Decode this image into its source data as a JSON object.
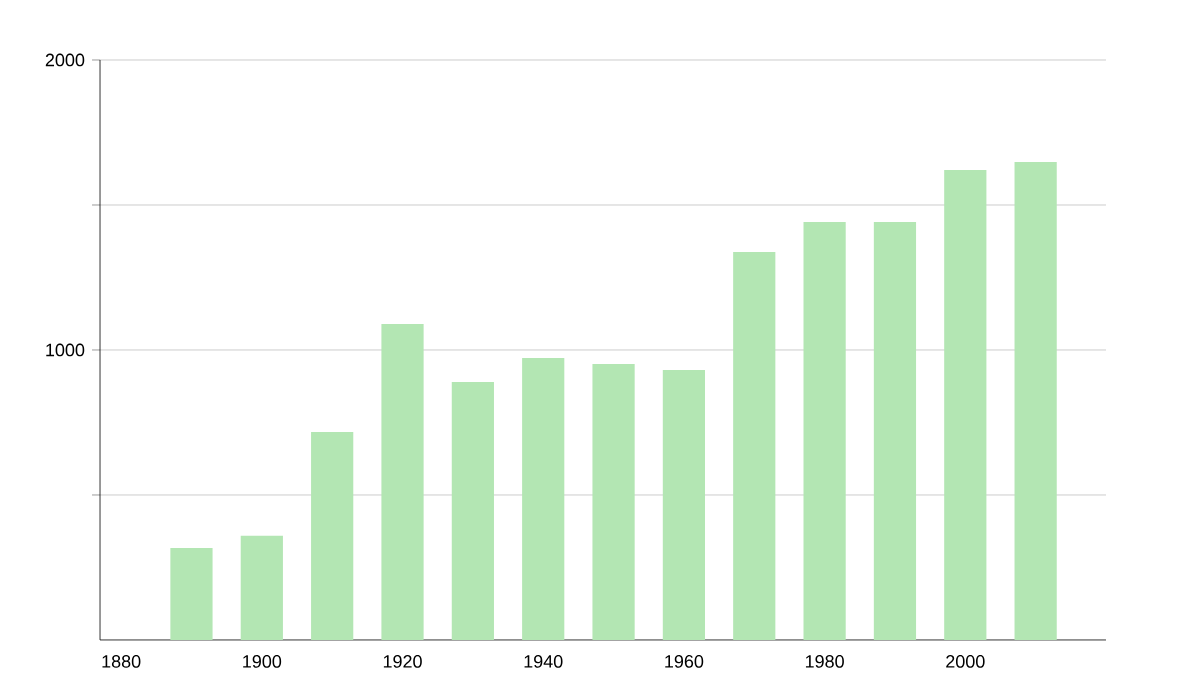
{
  "chart_data": {
    "type": "bar",
    "x": [
      1890,
      1900,
      1910,
      1920,
      1930,
      1940,
      1950,
      1960,
      1970,
      1980,
      1990,
      2000,
      2010
    ],
    "values": [
      317,
      359,
      717,
      1090,
      890,
      972,
      952,
      931,
      1338,
      1441,
      1441,
      1621,
      1648
    ],
    "color": "#b3e6b3",
    "xlim": [
      1877,
      2020
    ],
    "xticks": [
      1880,
      1900,
      1920,
      1940,
      1960,
      1980,
      2000
    ],
    "ylim": [
      0,
      2000
    ],
    "yticks": [
      {
        "value": 500,
        "label": null
      },
      1000,
      {
        "value": 1500,
        "label": null
      },
      2000
    ],
    "grid": "y"
  }
}
